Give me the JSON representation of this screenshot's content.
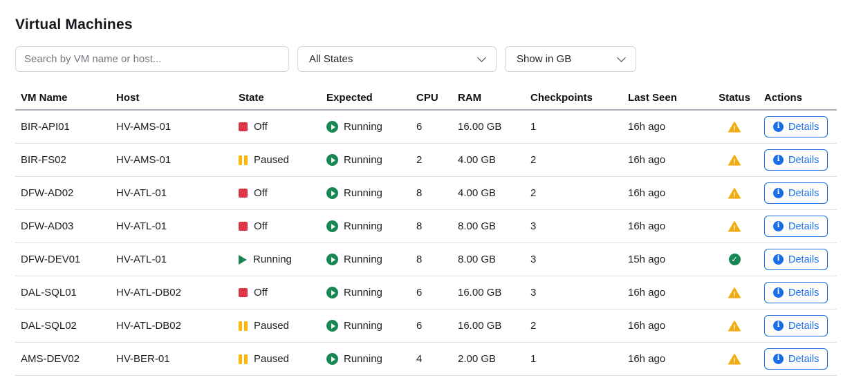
{
  "page": {
    "title": "Virtual Machines"
  },
  "filters": {
    "search_placeholder": "Search by VM name or host...",
    "state_select_value": "All States",
    "unit_select_value": "Show in GB"
  },
  "table": {
    "columns": [
      "VM Name",
      "Host",
      "State",
      "Expected",
      "CPU",
      "RAM",
      "Checkpoints",
      "Last Seen",
      "Status",
      "Actions"
    ],
    "details_label": "Details",
    "rows": [
      {
        "vm": "BIR-API01",
        "host": "HV-AMS-01",
        "state": "Off",
        "state_kind": "off",
        "expected": "Running",
        "cpu": "6",
        "ram": "16.00 GB",
        "checkpoints": "1",
        "last_seen": "16h ago",
        "status": "warning"
      },
      {
        "vm": "BIR-FS02",
        "host": "HV-AMS-01",
        "state": "Paused",
        "state_kind": "paused",
        "expected": "Running",
        "cpu": "2",
        "ram": "4.00 GB",
        "checkpoints": "2",
        "last_seen": "16h ago",
        "status": "warning"
      },
      {
        "vm": "DFW-AD02",
        "host": "HV-ATL-01",
        "state": "Off",
        "state_kind": "off",
        "expected": "Running",
        "cpu": "8",
        "ram": "4.00 GB",
        "checkpoints": "2",
        "last_seen": "16h ago",
        "status": "warning"
      },
      {
        "vm": "DFW-AD03",
        "host": "HV-ATL-01",
        "state": "Off",
        "state_kind": "off",
        "expected": "Running",
        "cpu": "8",
        "ram": "8.00 GB",
        "checkpoints": "3",
        "last_seen": "16h ago",
        "status": "warning"
      },
      {
        "vm": "DFW-DEV01",
        "host": "HV-ATL-01",
        "state": "Running",
        "state_kind": "running",
        "expected": "Running",
        "cpu": "8",
        "ram": "8.00 GB",
        "checkpoints": "3",
        "last_seen": "15h ago",
        "status": "ok"
      },
      {
        "vm": "DAL-SQL01",
        "host": "HV-ATL-DB02",
        "state": "Off",
        "state_kind": "off",
        "expected": "Running",
        "cpu": "6",
        "ram": "16.00 GB",
        "checkpoints": "3",
        "last_seen": "16h ago",
        "status": "warning"
      },
      {
        "vm": "DAL-SQL02",
        "host": "HV-ATL-DB02",
        "state": "Paused",
        "state_kind": "paused",
        "expected": "Running",
        "cpu": "6",
        "ram": "16.00 GB",
        "checkpoints": "2",
        "last_seen": "16h ago",
        "status": "warning"
      },
      {
        "vm": "AMS-DEV02",
        "host": "HV-BER-01",
        "state": "Paused",
        "state_kind": "paused",
        "expected": "Running",
        "cpu": "4",
        "ram": "2.00 GB",
        "checkpoints": "1",
        "last_seen": "16h ago",
        "status": "warning"
      }
    ]
  },
  "colors": {
    "accent_blue": "#1a6fe8",
    "state_off_red": "#dc3545",
    "state_paused_amber": "#ffb902",
    "state_running_green": "#198754",
    "status_warning_amber": "#f2ab10",
    "status_ok_green": "#198754"
  }
}
